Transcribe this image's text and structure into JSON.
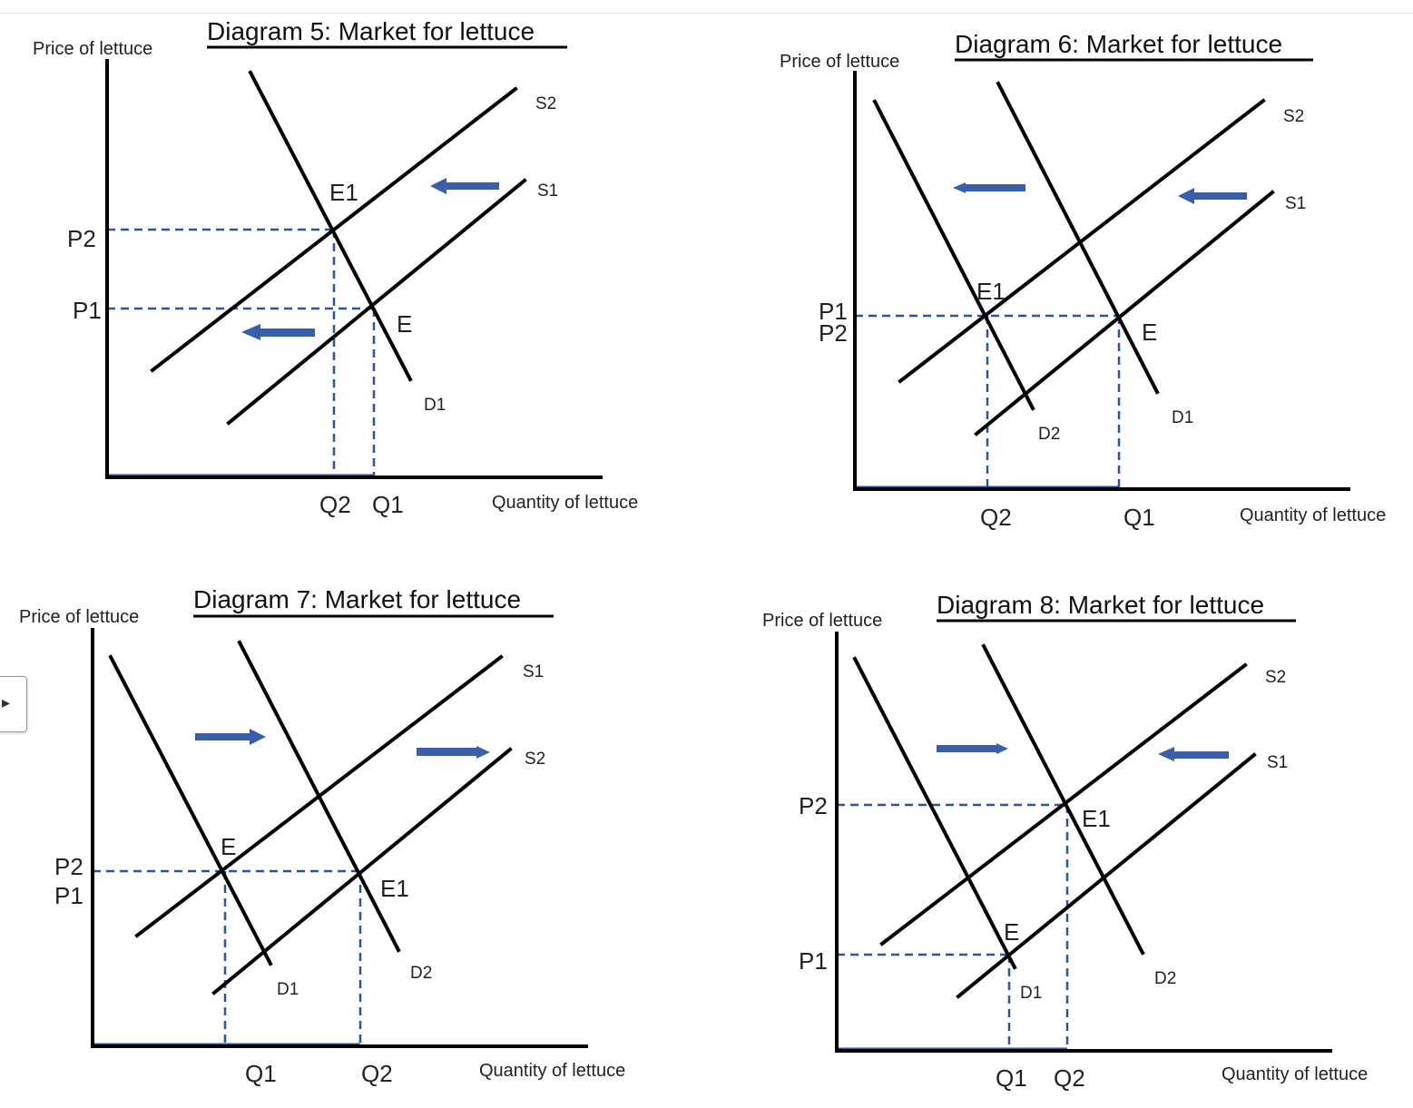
{
  "colors": {
    "curve": "#000000",
    "guide": "#2f5597",
    "arrow": "#3a5ea8"
  },
  "diagrams": [
    {
      "title": "Diagram 5:  Market for lettuce",
      "ylabel": "Price of lettuce",
      "xlabel": "Quantity of lettuce",
      "curves": {
        "s2": "S2",
        "s1": "S1",
        "d1": "D1"
      },
      "points": {
        "e1": "E1",
        "e": "E"
      },
      "prices": {
        "p2": "P2",
        "p1": "P1"
      },
      "quantities": {
        "q2": "Q2",
        "q1": "Q1"
      },
      "arrows": [
        "left",
        "left"
      ]
    },
    {
      "title": "Diagram 6:  Market for lettuce",
      "ylabel": "Price of lettuce",
      "xlabel": "Quantity of lettuce",
      "curves": {
        "s2": "S2",
        "s1": "S1",
        "d1": "D1",
        "d2": "D2"
      },
      "points": {
        "e1": "E1",
        "e": "E"
      },
      "prices": {
        "p1": "P1",
        "p2": "P2"
      },
      "quantities": {
        "q2": "Q2",
        "q1": "Q1"
      },
      "arrows": [
        "left",
        "left"
      ]
    },
    {
      "title": "Diagram 7:  Market for lettuce",
      "ylabel": "Price of lettuce",
      "xlabel": "Quantity of lettuce",
      "curves": {
        "s1": "S1",
        "s2": "S2",
        "d1": "D1",
        "d2": "D2"
      },
      "points": {
        "e": "E",
        "e1": "E1"
      },
      "prices": {
        "p2": "P2",
        "p1": "P1"
      },
      "quantities": {
        "q1": "Q1",
        "q2": "Q2"
      },
      "arrows": [
        "right",
        "right"
      ]
    },
    {
      "title": "Diagram 8:  Market for lettuce",
      "ylabel": "Price of lettuce",
      "xlabel": "Quantity of lettuce",
      "curves": {
        "s2": "S2",
        "s1": "S1",
        "d1": "D1",
        "d2": "D2"
      },
      "points": {
        "e1": "E1",
        "e": "E"
      },
      "prices": {
        "p2": "P2",
        "p1": "P1"
      },
      "quantities": {
        "q1": "Q1",
        "q2": "Q2"
      },
      "arrows": [
        "right",
        "left"
      ]
    }
  ]
}
